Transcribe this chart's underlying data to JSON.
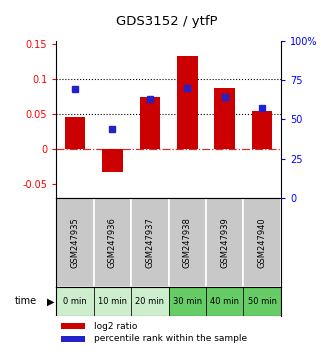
{
  "title": "GDS3152 / ytfP",
  "samples": [
    "GSM247935",
    "GSM247936",
    "GSM247937",
    "GSM247938",
    "GSM247939",
    "GSM247940"
  ],
  "time_labels": [
    "0 min",
    "10 min",
    "20 min",
    "30 min",
    "40 min",
    "50 min"
  ],
  "log2_ratio": [
    0.046,
    -0.033,
    0.074,
    0.133,
    0.088,
    0.054
  ],
  "percentile_rank": [
    69,
    44,
    63,
    70,
    64.5,
    57
  ],
  "ylim_left": [
    -0.07,
    0.155
  ],
  "ylim_right": [
    0,
    100
  ],
  "yticks_left": [
    -0.05,
    0,
    0.05,
    0.1,
    0.15
  ],
  "ytick_labels_left": [
    "-0.05",
    "0",
    "0.05",
    "0.1",
    "0.15"
  ],
  "yticks_right": [
    0,
    25,
    50,
    75,
    100
  ],
  "ytick_labels_right": [
    "0",
    "25",
    "50",
    "75",
    "100%"
  ],
  "hlines": [
    0.05,
    0.1
  ],
  "bar_color": "#cc0000",
  "dot_color": "#2222cc",
  "zero_line_color": "#cc3333",
  "bg_color_samples": "#c8c8c8",
  "legend_bar_label": "log2 ratio",
  "legend_dot_label": "percentile rank within the sample",
  "time_colors": [
    "#cceecc",
    "#cceecc",
    "#cceecc",
    "#66cc66",
    "#66cc66",
    "#66cc66"
  ],
  "bar_width": 0.55
}
